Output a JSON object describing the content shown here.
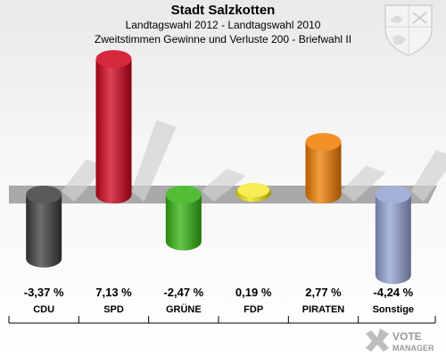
{
  "header": {
    "title": "Stadt Salzkotten",
    "subtitle": "Landtagswahl 2012 - Landtagswahl 2010",
    "subtitle2": "Zweitstimmen Gewinne und Verluste 200 - Briefwahl II"
  },
  "brand": {
    "line1": "VOTE",
    "line2": "MANAGER"
  },
  "chart_data": {
    "type": "bar",
    "title": "Stadt Salzkotten",
    "subtitle": "Landtagswahl 2012 - Landtagswahl 2010 · Zweitstimmen Gewinne und Verluste 200 - Briefwahl II",
    "categories": [
      "CDU",
      "SPD",
      "GRÜNE",
      "FDP",
      "PIRATEN",
      "Sonstige"
    ],
    "values": [
      -3.37,
      7.13,
      -2.47,
      0.19,
      2.77,
      -4.24
    ],
    "value_labels": [
      "-3,37 %",
      "7,13 %",
      "-2,47 %",
      "0,19 %",
      "2,77 %",
      "-4,24 %"
    ],
    "unit": "%",
    "colors": [
      "#3d3d3d",
      "#d0021b",
      "#33b312",
      "#f5e50a",
      "#f07d00",
      "#93a3d2"
    ],
    "grid": false,
    "legend": "none"
  }
}
